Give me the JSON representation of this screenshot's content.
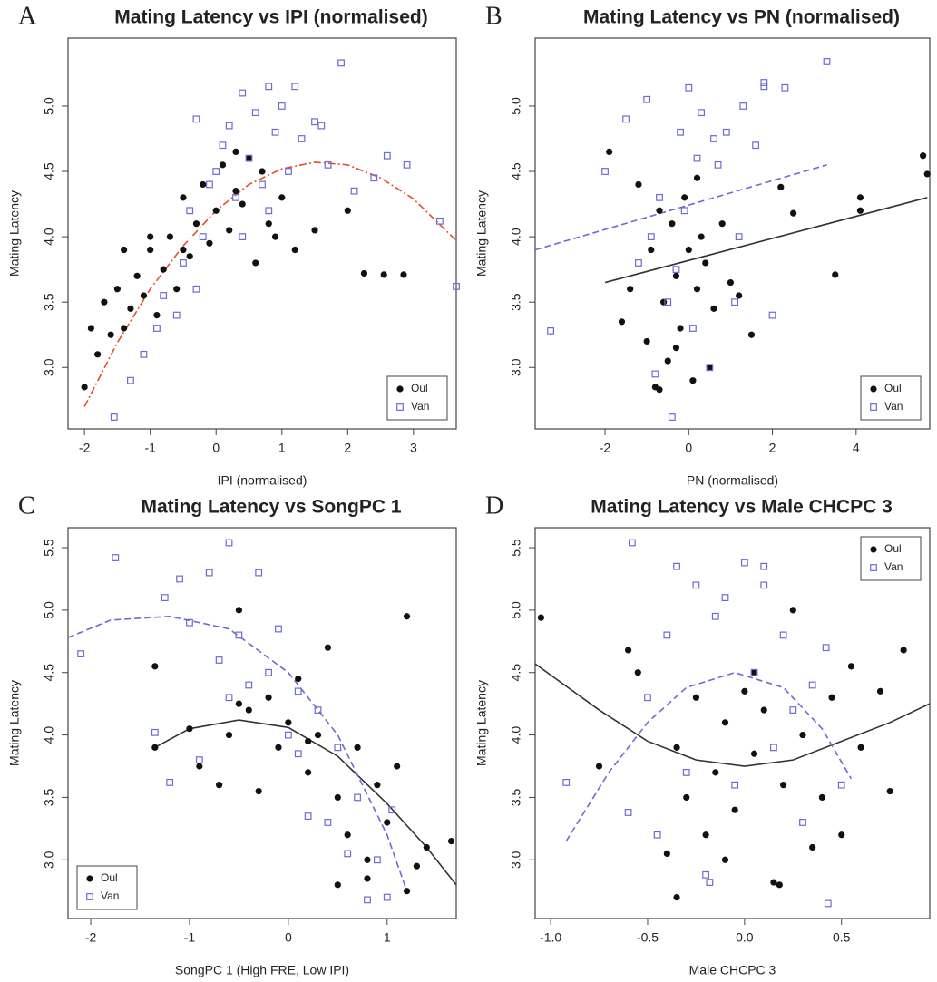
{
  "chart_data": [
    {
      "type": "scatter",
      "panel_label": "A",
      "title": "Mating Latency vs IPI (normalised)",
      "xlabel": "IPI (normalised)",
      "ylabel": "Mating Latency",
      "xlim": [
        -2.25,
        3.65
      ],
      "ylim": [
        2.53,
        5.52
      ],
      "xticks": [
        -2,
        -1,
        0,
        1,
        2,
        3
      ],
      "yticks": [
        {
          "value": 3.0,
          "label": "3.0"
        },
        3.5,
        {
          "value": 4.0,
          "label": "4.0"
        },
        4.5,
        {
          "value": 5.0,
          "label": "5.0"
        }
      ],
      "legend": "bottom-right",
      "series": [
        {
          "name": "Oul",
          "color": "#111111",
          "marker": "circle",
          "x": [
            -2.0,
            -1.9,
            -1.8,
            -1.7,
            -1.6,
            -1.5,
            -1.4,
            -1.3,
            -1.2,
            -1.1,
            -1.0,
            -0.9,
            -0.8,
            -0.7,
            -0.6,
            -0.5,
            -0.4,
            -0.3,
            -0.2,
            -0.1,
            0.0,
            0.1,
            0.2,
            0.3,
            0.4,
            0.5,
            0.6,
            0.7,
            0.8,
            0.9,
            1.0,
            1.2,
            1.5,
            2.0,
            2.25,
            2.55,
            2.85,
            -1.4,
            -1.0,
            -0.5,
            0.3
          ],
          "values": [
            2.85,
            3.3,
            3.1,
            3.5,
            3.25,
            3.6,
            3.9,
            3.45,
            3.7,
            3.55,
            3.9,
            3.4,
            3.75,
            4.0,
            3.6,
            4.3,
            3.85,
            4.1,
            4.4,
            3.95,
            4.2,
            4.55,
            4.05,
            4.35,
            4.25,
            4.6,
            3.8,
            4.5,
            4.1,
            4.0,
            4.3,
            3.9,
            4.05,
            4.2,
            3.72,
            3.71,
            3.71,
            3.3,
            4.0,
            3.9,
            4.65
          ]
        },
        {
          "name": "Van",
          "color": "#6b6bd1",
          "marker": "square",
          "x": [
            -1.55,
            -1.3,
            -1.1,
            -0.9,
            -0.8,
            -0.6,
            -0.5,
            -0.4,
            -0.3,
            -0.2,
            -0.1,
            0.0,
            0.1,
            0.2,
            0.3,
            0.4,
            0.5,
            0.6,
            0.7,
            0.8,
            0.9,
            1.0,
            1.1,
            1.2,
            1.3,
            1.5,
            1.7,
            1.9,
            2.1,
            2.4,
            2.6,
            2.9,
            3.4,
            3.65,
            0.4,
            0.8,
            1.6,
            -0.3
          ],
          "values": [
            2.62,
            2.9,
            3.1,
            3.3,
            3.55,
            3.4,
            3.8,
            4.2,
            3.6,
            4.0,
            4.4,
            4.5,
            4.7,
            4.85,
            4.3,
            5.1,
            4.6,
            4.95,
            4.4,
            5.15,
            4.8,
            5.0,
            4.5,
            5.15,
            4.75,
            4.88,
            4.55,
            5.33,
            4.35,
            4.45,
            4.62,
            4.55,
            4.12,
            3.62,
            4.0,
            4.2,
            4.85,
            4.9
          ]
        }
      ],
      "fits": [
        {
          "color": "#e0502a",
          "style": "dash-dot",
          "x": [
            -2,
            -1.5,
            -1,
            -0.5,
            0,
            0.5,
            1,
            1.5,
            2,
            2.5,
            3,
            3.65
          ],
          "values": [
            2.7,
            3.19,
            3.6,
            3.93,
            4.2,
            4.4,
            4.52,
            4.57,
            4.55,
            4.45,
            4.29,
            3.97
          ]
        }
      ]
    },
    {
      "type": "scatter",
      "panel_label": "B",
      "title": "Mating Latency vs PN (normalised)",
      "xlabel": "PN (normalised)",
      "ylabel": "Mating Latency",
      "xlim": [
        -3.67,
        5.76
      ],
      "ylim": [
        2.53,
        5.52
      ],
      "xticks": [
        -2,
        0,
        2,
        4
      ],
      "yticks": [
        {
          "value": 3.0,
          "label": "3.0"
        },
        3.5,
        {
          "value": 4.0,
          "label": "4.0"
        },
        4.5,
        {
          "value": 5.0,
          "label": "5.0"
        }
      ],
      "legend": "bottom-right",
      "series": [
        {
          "name": "Oul",
          "color": "#111111",
          "marker": "circle",
          "x": [
            -1.9,
            -1.6,
            -1.4,
            -1.2,
            -1.0,
            -0.9,
            -0.8,
            -0.7,
            -0.6,
            -0.5,
            -0.4,
            -0.3,
            -0.2,
            -0.1,
            0.0,
            0.1,
            0.2,
            0.3,
            0.4,
            0.5,
            0.6,
            0.8,
            1.0,
            1.2,
            1.5,
            2.2,
            2.5,
            3.5,
            4.1,
            4.1,
            5.6,
            5.7,
            -0.7,
            0.2,
            -0.3
          ],
          "values": [
            4.65,
            3.35,
            3.6,
            4.4,
            3.2,
            3.9,
            2.85,
            4.2,
            3.5,
            3.05,
            4.1,
            3.7,
            3.3,
            4.3,
            3.9,
            2.9,
            3.6,
            4.0,
            3.8,
            3.0,
            3.45,
            4.1,
            3.65,
            3.55,
            3.25,
            4.38,
            4.18,
            3.71,
            4.2,
            4.3,
            4.62,
            4.48,
            2.83,
            4.45,
            3.15
          ]
        },
        {
          "name": "Van",
          "color": "#6b6bd1",
          "marker": "square",
          "x": [
            -3.3,
            -2.0,
            -1.5,
            -1.2,
            -1.0,
            -0.8,
            -0.7,
            -0.5,
            -0.4,
            -0.2,
            0.0,
            0.1,
            0.2,
            0.3,
            0.5,
            0.7,
            0.9,
            1.1,
            1.3,
            1.6,
            1.8,
            2.0,
            2.3,
            1.8,
            3.3,
            -0.9,
            -0.1,
            0.6,
            1.2,
            -0.3
          ],
          "values": [
            3.28,
            4.5,
            4.9,
            3.8,
            5.05,
            2.95,
            4.3,
            3.5,
            2.62,
            4.8,
            5.14,
            3.3,
            4.6,
            4.95,
            3.0,
            4.55,
            4.8,
            3.5,
            5.0,
            4.7,
            5.15,
            3.4,
            5.14,
            5.18,
            5.34,
            4.0,
            4.2,
            4.75,
            4.0,
            3.75
          ]
        }
      ],
      "fits": [
        {
          "color": "#333333",
          "style": "solid",
          "x": [
            -2,
            5.7
          ],
          "values": [
            3.65,
            4.3
          ]
        },
        {
          "color": "#6b6bd1",
          "style": "dashed",
          "x": [
            -3.67,
            3.3
          ],
          "values": [
            3.9,
            4.55
          ]
        }
      ]
    },
    {
      "type": "scatter",
      "panel_label": "C",
      "title": "Mating Latency vs SongPC 1",
      "xlabel": "SongPC 1 (High FRE, Low IPI)",
      "ylabel": "Mating Latency",
      "xlim": [
        -2.23,
        1.7
      ],
      "ylim": [
        2.53,
        5.66
      ],
      "xticks": [
        -2,
        -1,
        0,
        1
      ],
      "yticks": [
        {
          "value": 3.0,
          "label": "3.0"
        },
        3.5,
        {
          "value": 4.0,
          "label": "4.0"
        },
        4.5,
        {
          "value": 5.0,
          "label": "5.0"
        },
        5.5
      ],
      "legend": "bottom-left",
      "series": [
        {
          "name": "Oul",
          "color": "#111111",
          "marker": "circle",
          "x": [
            -1.35,
            -1.35,
            -1.0,
            -0.9,
            -0.7,
            -0.6,
            -0.5,
            -0.4,
            -0.3,
            -0.2,
            -0.1,
            0.0,
            0.1,
            0.2,
            0.3,
            0.4,
            0.5,
            0.6,
            0.7,
            0.8,
            0.9,
            1.0,
            1.1,
            1.2,
            1.3,
            1.4,
            1.65,
            0.5,
            0.8,
            1.2,
            0.2,
            -0.5
          ],
          "values": [
            4.55,
            3.9,
            4.05,
            3.75,
            3.6,
            4.0,
            5.0,
            4.2,
            3.55,
            4.3,
            3.9,
            4.1,
            4.45,
            3.7,
            4.0,
            4.7,
            3.5,
            3.2,
            3.9,
            3.0,
            3.6,
            3.3,
            3.75,
            4.95,
            2.95,
            3.1,
            3.15,
            2.8,
            2.85,
            2.75,
            3.95,
            4.25
          ]
        },
        {
          "name": "Van",
          "color": "#6b6bd1",
          "marker": "square",
          "x": [
            -2.1,
            -1.75,
            -1.35,
            -1.25,
            -1.2,
            -1.1,
            -1.0,
            -0.9,
            -0.8,
            -0.7,
            -0.6,
            -0.5,
            -0.4,
            -0.3,
            -0.2,
            -0.1,
            0.0,
            0.1,
            0.2,
            0.3,
            0.4,
            0.5,
            0.6,
            0.7,
            0.8,
            0.9,
            1.0,
            1.05,
            -0.6,
            0.1
          ],
          "values": [
            4.65,
            5.42,
            4.02,
            5.1,
            3.62,
            5.25,
            4.9,
            3.8,
            5.3,
            4.6,
            5.54,
            4.8,
            4.4,
            5.3,
            4.5,
            4.85,
            4.0,
            4.35,
            3.35,
            4.2,
            3.3,
            3.9,
            3.05,
            3.5,
            2.68,
            3.0,
            2.7,
            3.4,
            4.3,
            3.85
          ]
        }
      ],
      "fits": [
        {
          "color": "#333333",
          "style": "solid",
          "x": [
            -1.35,
            -1,
            -0.5,
            0,
            0.5,
            1,
            1.4,
            1.7
          ],
          "values": [
            3.9,
            4.05,
            4.12,
            4.06,
            3.83,
            3.45,
            3.1,
            2.8
          ]
        },
        {
          "color": "#6b6bd1",
          "style": "dashed",
          "x": [
            -2.23,
            -1.8,
            -1.2,
            -0.6,
            0,
            0.5,
            1.0,
            1.2
          ],
          "values": [
            4.78,
            4.92,
            4.95,
            4.85,
            4.5,
            4.0,
            3.2,
            2.75
          ]
        }
      ]
    },
    {
      "type": "scatter",
      "panel_label": "D",
      "title": "Mating Latency vs Male CHCPC 3",
      "xlabel": "Male CHCPC 3",
      "ylabel": "Mating Latency",
      "xlim": [
        -1.08,
        0.955
      ],
      "ylim": [
        2.53,
        5.66
      ],
      "xticks": [
        {
          "value": -1.0,
          "label": "-1.0"
        },
        -0.5,
        {
          "value": 0.0,
          "label": "0.0"
        },
        0.5
      ],
      "yticks": [
        {
          "value": 3.0,
          "label": "3.0"
        },
        3.5,
        {
          "value": 4.0,
          "label": "4.0"
        },
        4.5,
        {
          "value": 5.0,
          "label": "5.0"
        },
        5.5
      ],
      "legend": "top-right",
      "series": [
        {
          "name": "Oul",
          "color": "#111111",
          "marker": "circle",
          "x": [
            -1.05,
            -0.75,
            -0.6,
            -0.55,
            -0.4,
            -0.35,
            -0.3,
            -0.25,
            -0.2,
            -0.15,
            -0.1,
            -0.05,
            0.0,
            0.05,
            0.1,
            0.15,
            0.2,
            0.25,
            0.3,
            0.35,
            0.4,
            0.45,
            0.5,
            0.55,
            0.6,
            0.7,
            0.75,
            0.82,
            -0.35,
            0.18,
            -0.1,
            0.05
          ],
          "values": [
            4.94,
            3.75,
            4.68,
            4.5,
            3.05,
            3.9,
            3.5,
            4.3,
            3.2,
            3.7,
            4.1,
            3.4,
            4.35,
            3.85,
            4.2,
            2.82,
            3.6,
            5.0,
            4.0,
            3.1,
            3.5,
            4.3,
            3.2,
            4.55,
            3.9,
            4.35,
            3.55,
            4.68,
            2.7,
            2.8,
            3.0,
            4.5
          ]
        },
        {
          "name": "Van",
          "color": "#6b6bd1",
          "marker": "square",
          "x": [
            -0.92,
            -0.6,
            -0.58,
            -0.5,
            -0.45,
            -0.4,
            -0.35,
            -0.3,
            -0.25,
            -0.2,
            -0.15,
            -0.1,
            -0.05,
            0.0,
            0.05,
            0.1,
            0.15,
            0.2,
            0.25,
            0.3,
            0.35,
            0.42,
            0.43,
            0.5,
            -0.18,
            0.1
          ],
          "values": [
            3.62,
            3.38,
            5.54,
            4.3,
            3.2,
            4.8,
            5.35,
            3.7,
            5.2,
            2.88,
            4.95,
            5.1,
            3.6,
            5.38,
            4.5,
            5.2,
            3.9,
            4.8,
            4.2,
            3.3,
            4.4,
            4.7,
            2.65,
            3.6,
            2.82,
            5.35
          ]
        }
      ],
      "fits": [
        {
          "color": "#333333",
          "style": "solid",
          "x": [
            -1.08,
            -0.75,
            -0.5,
            -0.25,
            0,
            0.25,
            0.5,
            0.75,
            0.955
          ],
          "values": [
            4.57,
            4.2,
            3.95,
            3.8,
            3.75,
            3.8,
            3.95,
            4.1,
            4.25
          ]
        },
        {
          "color": "#6b6bd1",
          "style": "dashed",
          "x": [
            -0.92,
            -0.7,
            -0.5,
            -0.3,
            -0.05,
            0.2,
            0.4,
            0.55
          ],
          "values": [
            3.15,
            3.7,
            4.1,
            4.38,
            4.5,
            4.38,
            4.05,
            3.65
          ]
        }
      ]
    }
  ]
}
